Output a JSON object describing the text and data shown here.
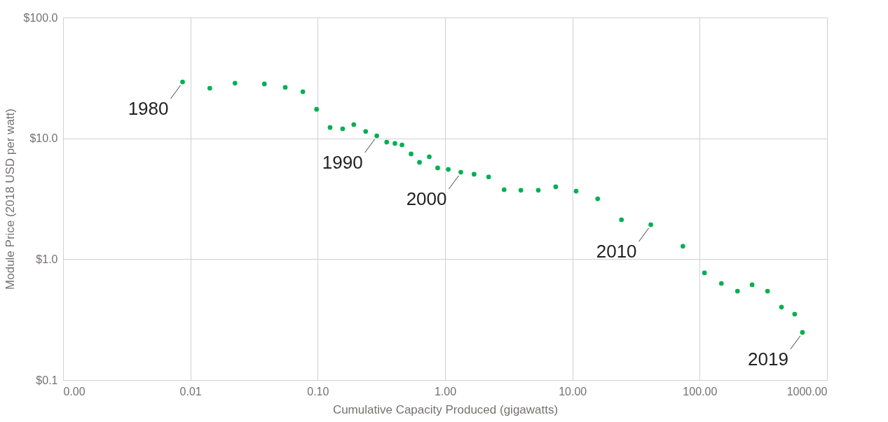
{
  "chart_data": {
    "type": "scatter",
    "xlabel": "Cumulative Capacity Produced (gigawatts)",
    "ylabel": "Module Price (2018 USD per watt)",
    "x": [
      0.00868,
      0.0142,
      0.0224,
      0.0381,
      0.0556,
      0.0764,
      0.098,
      0.125,
      0.157,
      0.192,
      0.238,
      0.291,
      0.348,
      0.404,
      0.459,
      0.541,
      0.63,
      0.752,
      0.875,
      1.06,
      1.33,
      1.69,
      2.2,
      2.91,
      3.94,
      5.4,
      7.4,
      10.7,
      15.8,
      24.3,
      41.3,
      73.8,
      109,
      148,
      198,
      258,
      341,
      439,
      557,
      641
    ],
    "series": [
      {
        "color": "#00b050",
        "values": [
          29.3,
          26.0,
          28.6,
          28.2,
          26.4,
          24.3,
          17.4,
          12.3,
          12.0,
          13.0,
          11.4,
          10.5,
          9.31,
          9.08,
          8.83,
          7.43,
          6.33,
          7.04,
          5.69,
          5.53,
          5.25,
          5.05,
          4.79,
          3.76,
          3.72,
          3.72,
          3.97,
          3.66,
          3.16,
          2.12,
          1.93,
          1.28,
          0.77,
          0.63,
          0.544,
          0.614,
          0.544,
          0.401,
          0.351,
          0.248
        ]
      }
    ],
    "annotations": [
      {
        "text": "1980",
        "x": 0.00868,
        "y": 29.3
      },
      {
        "text": "1990",
        "x": 0.291,
        "y": 10.5
      },
      {
        "text": "2000",
        "x": 1.33,
        "y": 5.25
      },
      {
        "text": "2010",
        "x": 41.3,
        "y": 1.93
      },
      {
        "text": "2019",
        "x": 641,
        "y": 0.248
      }
    ],
    "log": "xy",
    "xlim": [
      0.001,
      1000
    ],
    "ylim": [
      0.1,
      100
    ],
    "xticks": [
      {
        "value": 0.001,
        "label": "0.00"
      },
      {
        "value": 0.01,
        "label": "0.01"
      },
      {
        "value": 0.1,
        "label": "0.10"
      },
      {
        "value": 1,
        "label": "1.00"
      },
      {
        "value": 10,
        "label": "10.00"
      },
      {
        "value": 100,
        "label": "100.00"
      },
      {
        "value": 1000,
        "label": "1000.00"
      }
    ],
    "yticks": [
      {
        "value": 0.1,
        "label": "$0.1"
      },
      {
        "value": 1,
        "label": "$1.0"
      },
      {
        "value": 10,
        "label": "$10.0"
      },
      {
        "value": 100,
        "label": "$100.0"
      }
    ],
    "grid": true,
    "marker": "circle",
    "legend": false
  }
}
